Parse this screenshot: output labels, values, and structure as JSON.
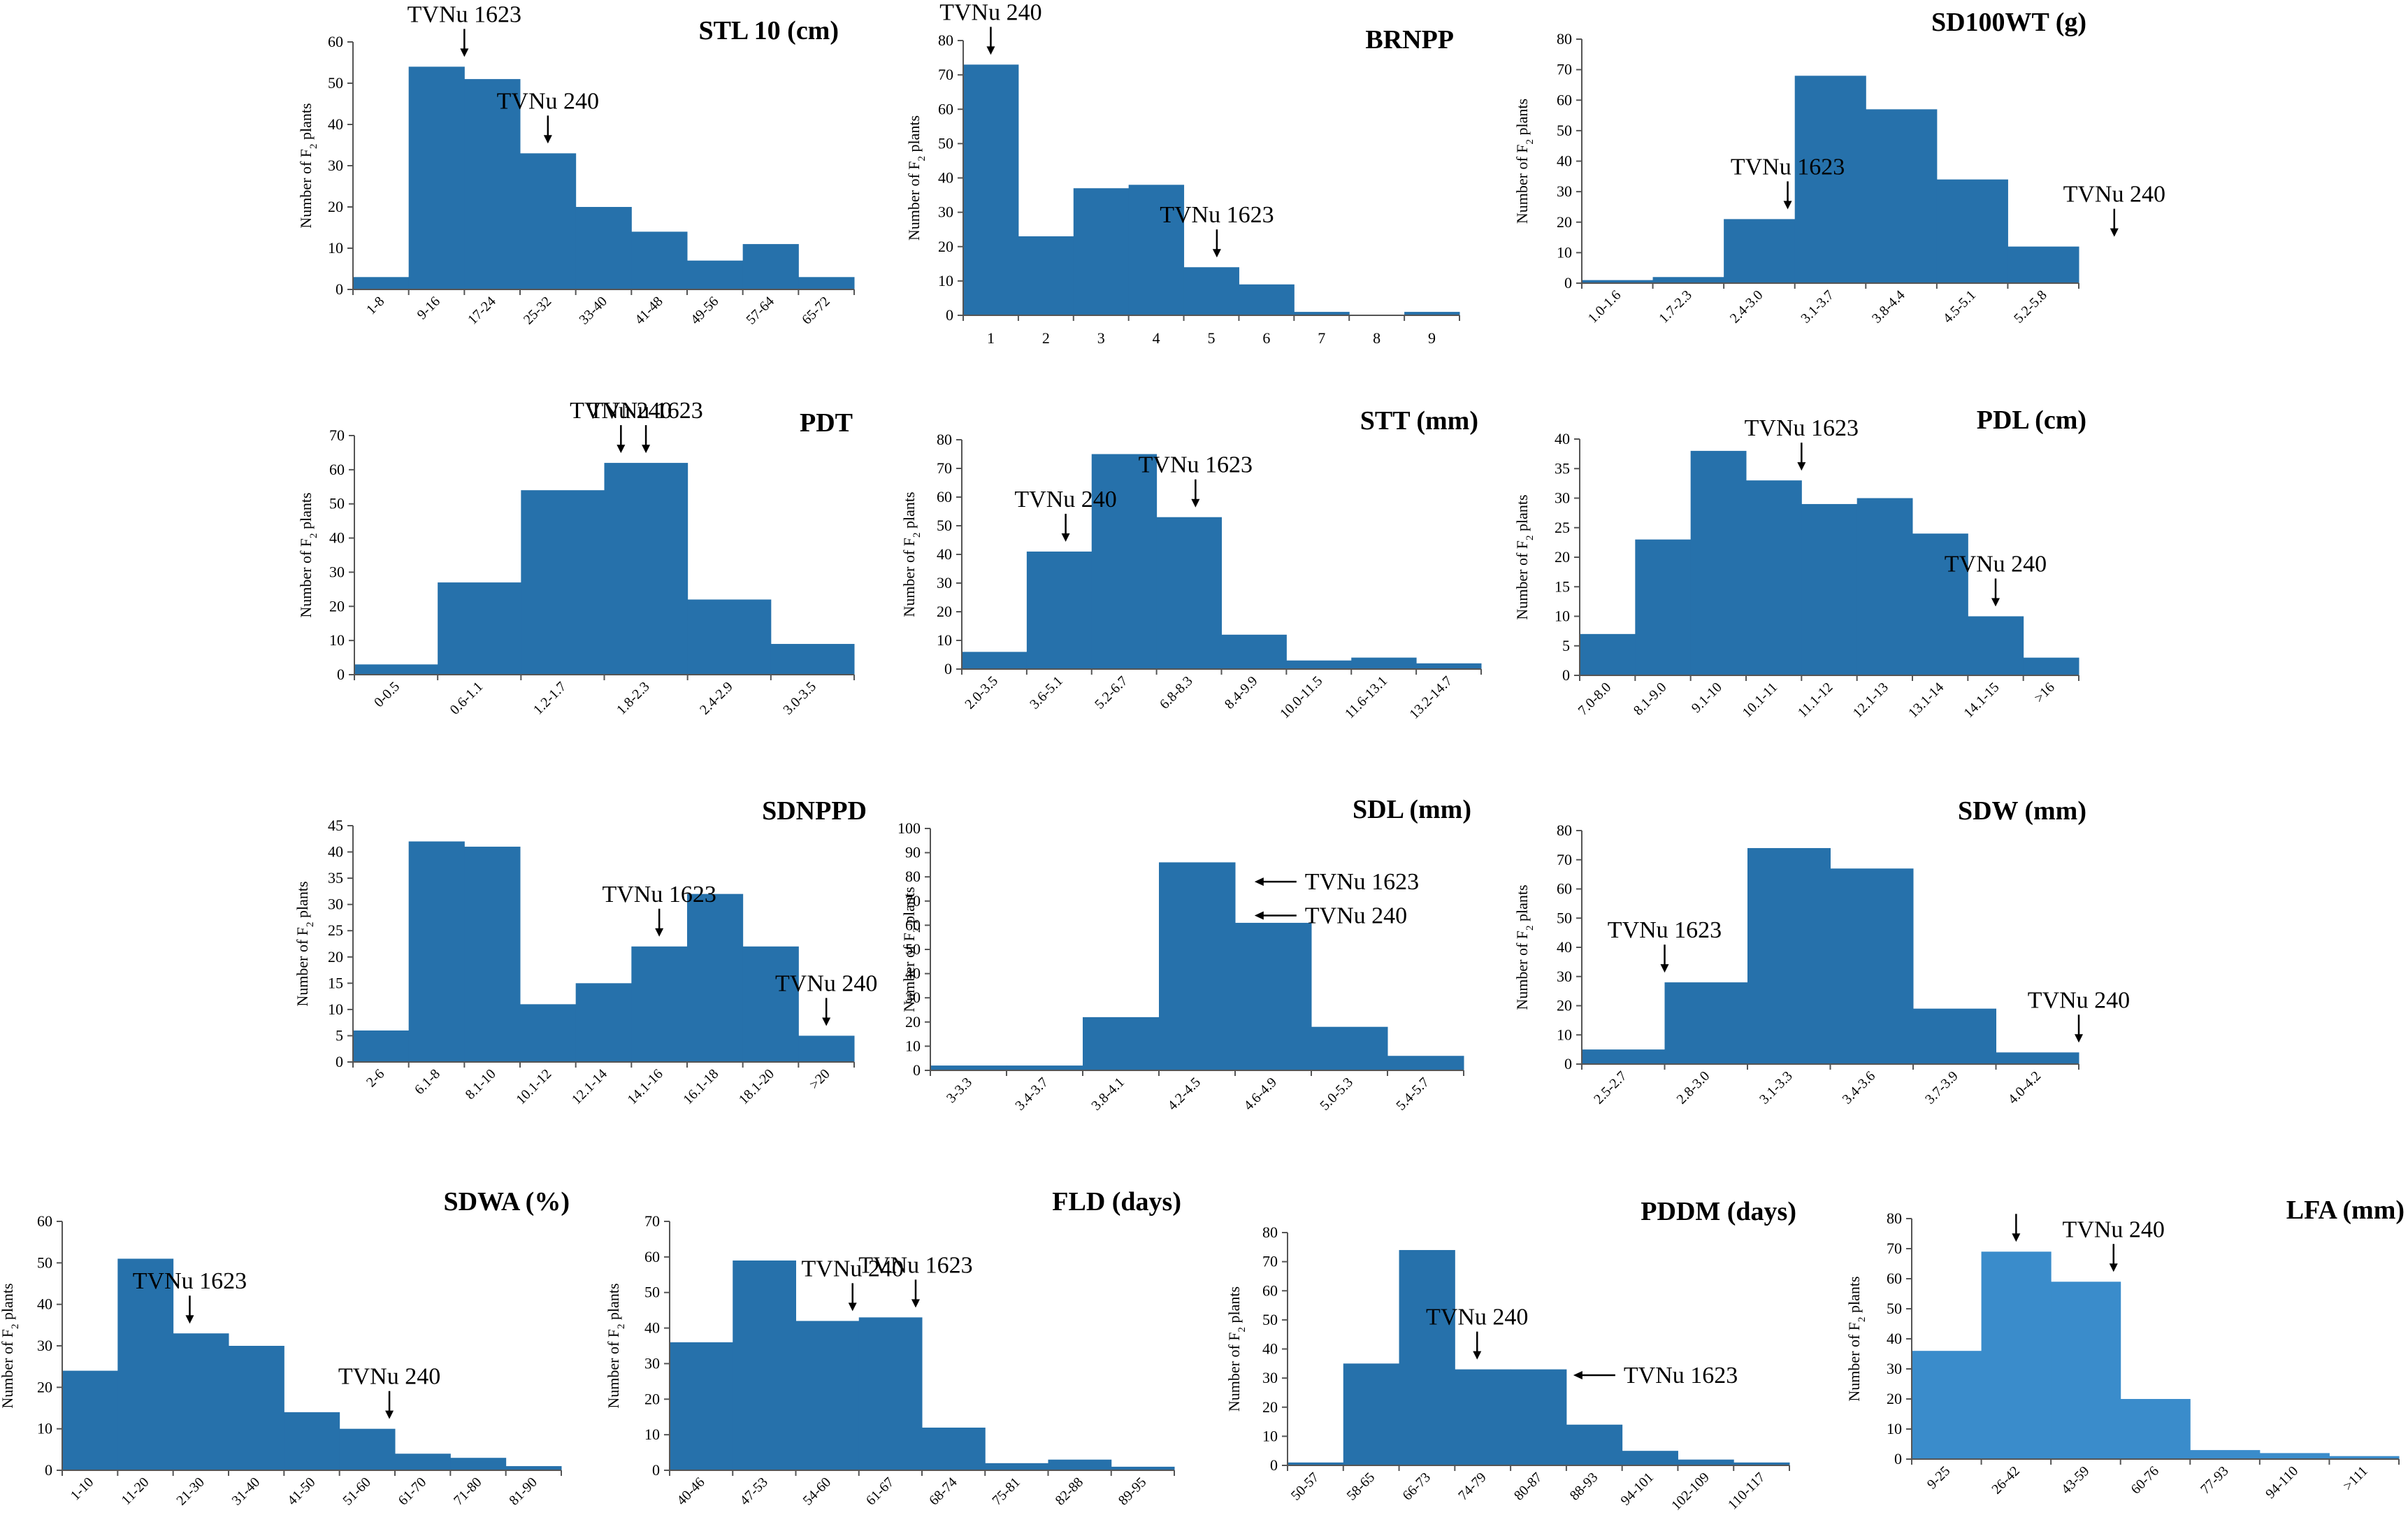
{
  "figure": {
    "ylabel_parts": {
      "prefix": "Number of F",
      "sub": "2",
      "suffix": " plants"
    }
  },
  "chart_data": [
    {
      "type": "bar",
      "title": "STL 10 (cm)",
      "categories": [
        "1-8",
        "9-16",
        "17-24",
        "25-32",
        "33-40",
        "41-48",
        "49-56",
        "57-64",
        "65-72"
      ],
      "values": [
        3,
        54,
        51,
        33,
        20,
        14,
        7,
        11,
        3
      ],
      "yticks": [
        0,
        10,
        20,
        30,
        40,
        50,
        60
      ],
      "ylim": [
        0,
        60
      ],
      "annotations": [
        {
          "label": "TVNu 1623",
          "bin": 2.0,
          "dir": "down"
        },
        {
          "label": "TVNu 240",
          "bin": 3.5,
          "dir": "down"
        }
      ]
    },
    {
      "type": "bar",
      "title": "BRNPP",
      "categories": [
        "1",
        "2",
        "3",
        "4",
        "5",
        "6",
        "7",
        "8",
        "9"
      ],
      "values": [
        73,
        23,
        37,
        38,
        14,
        9,
        1,
        0,
        1
      ],
      "yticks": [
        0,
        10,
        20,
        30,
        40,
        50,
        60,
        70,
        80
      ],
      "ylim": [
        0,
        80
      ],
      "annotations": [
        {
          "label": "TVNu 240",
          "bin": 0.5,
          "dir": "down"
        },
        {
          "label": "TVNu 1623",
          "bin": 4.6,
          "dir": "down"
        }
      ]
    },
    {
      "type": "bar",
      "title": "SD100WT (g)",
      "categories": [
        "1.0-1.6",
        "1.7-2.3",
        "2.4-3.0",
        "3.1-3.7",
        "3.8-4.4",
        "4.5-5.1",
        "5.2-5.8"
      ],
      "values": [
        1,
        2,
        21,
        68,
        57,
        34,
        12
      ],
      "yticks": [
        0,
        10,
        20,
        30,
        40,
        50,
        60,
        70,
        80
      ],
      "ylim": [
        0,
        80
      ],
      "annotations": [
        {
          "label": "TVNu 1623",
          "bin": 2.9,
          "dir": "down"
        },
        {
          "label": "TVNu 240",
          "bin": 7.5,
          "dir": "down"
        }
      ]
    },
    {
      "type": "bar",
      "title": "PDT",
      "categories": [
        "0-0.5",
        "0.6-1.1",
        "1.2-1.7",
        "1.8-2.3",
        "2.4-2.9",
        "3.0-3.5"
      ],
      "values": [
        3,
        27,
        54,
        62,
        22,
        9
      ],
      "yticks": [
        0,
        10,
        20,
        30,
        40,
        50,
        60,
        70
      ],
      "ylim": [
        0,
        70
      ],
      "annotations": [
        {
          "label": "TVNu 240",
          "bin": 3.2,
          "dir": "down"
        },
        {
          "label": "TVNu 1623",
          "bin": 3.5,
          "dir": "down"
        }
      ]
    },
    {
      "type": "bar",
      "title": "STT (mm)",
      "categories": [
        "2.0-3.5",
        "3.6-5.1",
        "5.2-6.7",
        "6.8-8.3",
        "8.4-9.9",
        "10.0-11.5",
        "11.6-13.1",
        "13.2-14.7"
      ],
      "values": [
        6,
        41,
        75,
        53,
        12,
        3,
        4,
        2
      ],
      "yticks": [
        0,
        10,
        20,
        30,
        40,
        50,
        60,
        70,
        80
      ],
      "ylim": [
        0,
        80
      ],
      "annotations": [
        {
          "label": "TVNu 240",
          "bin": 1.6,
          "dir": "down"
        },
        {
          "label": "TVNu 1623",
          "bin": 3.6,
          "dir": "down"
        }
      ]
    },
    {
      "type": "bar",
      "title": "PDL (cm)",
      "categories": [
        "7.0-8.0",
        "8.1-9.0",
        "9.1-10",
        "10.1-11",
        "11.1-12",
        "12.1-13",
        "13.1-14",
        "14.1-15",
        ">16"
      ],
      "values": [
        7,
        23,
        38,
        33,
        29,
        30,
        24,
        10,
        3
      ],
      "yticks": [
        0,
        5,
        10,
        15,
        20,
        25,
        30,
        35,
        40
      ],
      "ylim": [
        0,
        40
      ],
      "annotations": [
        {
          "label": "TVNu 1623",
          "bin": 4.0,
          "dir": "down"
        },
        {
          "label": "TVNu 240",
          "bin": 7.5,
          "dir": "down"
        }
      ]
    },
    {
      "type": "bar",
      "title": "SDNPPD",
      "categories": [
        "2-6",
        "6.1-8",
        "8.1-10",
        "10.1-12",
        "12.1-14",
        "14.1-16",
        "16.1-18",
        "18.1-20",
        ">20"
      ],
      "values": [
        6,
        42,
        41,
        11,
        15,
        22,
        32,
        22,
        5
      ],
      "yticks": [
        0,
        5,
        10,
        15,
        20,
        25,
        30,
        35,
        40,
        45
      ],
      "ylim": [
        0,
        45
      ],
      "annotations": [
        {
          "label": "TVNu 1623",
          "bin": 5.5,
          "dir": "down"
        },
        {
          "label": "TVNu 240",
          "bin": 8.5,
          "dir": "down"
        }
      ]
    },
    {
      "type": "bar",
      "title": "SDL (mm)",
      "categories": [
        "3-3.3",
        "3.4-3.7",
        "3.8-4.1",
        "4.2-4.5",
        "4.6-4.9",
        "5.0-5.3",
        "5.4-5.7"
      ],
      "values": [
        2,
        2,
        22,
        86,
        61,
        18,
        6
      ],
      "yticks": [
        0,
        10,
        20,
        30,
        40,
        50,
        60,
        70,
        80,
        90,
        100
      ],
      "ylim": [
        0,
        100
      ],
      "annotations": [
        {
          "label": "TVNu 1623",
          "bin": 4.2,
          "y": 78,
          "dir": "left"
        },
        {
          "label": "TVNu 240",
          "bin": 4.2,
          "y": 64,
          "dir": "left"
        }
      ]
    },
    {
      "type": "bar",
      "title": "SDW (mm)",
      "categories": [
        "2.5-2.7",
        "2.8-3.0",
        "3.1-3.3",
        "3.4-3.6",
        "3.7-3.9",
        "4.0-4.2"
      ],
      "values": [
        5,
        28,
        74,
        67,
        19,
        4
      ],
      "yticks": [
        0,
        10,
        20,
        30,
        40,
        50,
        60,
        70,
        80
      ],
      "ylim": [
        0,
        80
      ],
      "annotations": [
        {
          "label": "TVNu 1623",
          "bin": 1.0,
          "dir": "down"
        },
        {
          "label": "TVNu 240",
          "bin": 6.0,
          "dir": "down"
        }
      ]
    },
    {
      "type": "bar",
      "title": "SDWA (%)",
      "categories": [
        "1-10",
        "11-20",
        "21-30",
        "31-40",
        "41-50",
        "51-60",
        "61-70",
        "71-80",
        "81-90"
      ],
      "values": [
        24,
        51,
        33,
        30,
        14,
        10,
        4,
        3,
        1
      ],
      "yticks": [
        0,
        10,
        20,
        30,
        40,
        50,
        60
      ],
      "ylim": [
        0,
        60
      ],
      "annotations": [
        {
          "label": "TVNu 1623",
          "bin": 2.3,
          "dir": "down"
        },
        {
          "label": "TVNu 240",
          "bin": 5.9,
          "dir": "down"
        }
      ]
    },
    {
      "type": "bar",
      "title": "FLD (days)",
      "categories": [
        "40-46",
        "47-53",
        "54-60",
        "61-67",
        "68-74",
        "75-81",
        "82-88",
        "89-95"
      ],
      "values": [
        36,
        59,
        42,
        43,
        12,
        2,
        3,
        1
      ],
      "yticks": [
        0,
        10,
        20,
        30,
        40,
        50,
        60,
        70
      ],
      "ylim": [
        0,
        70
      ],
      "annotations": [
        {
          "label": "TVNu 240",
          "bin": 2.9,
          "dir": "down"
        },
        {
          "label": "TVNu 1623",
          "bin": 3.9,
          "dir": "down"
        }
      ]
    },
    {
      "type": "bar",
      "title": "PDDM (days)",
      "categories": [
        "50-57",
        "58-65",
        "66-73",
        "74-79",
        "80-87",
        "88-93",
        "94-101",
        "102-109",
        "110-117"
      ],
      "values": [
        1,
        35,
        74,
        33,
        33,
        14,
        5,
        2,
        1
      ],
      "yticks": [
        0,
        10,
        20,
        30,
        40,
        50,
        60,
        70,
        80
      ],
      "ylim": [
        0,
        80
      ],
      "annotations": [
        {
          "label": "TVNu 240",
          "bin": 3.4,
          "dir": "down"
        },
        {
          "label": "TVNu 1623",
          "bin": 5.05,
          "y": 31,
          "dir": "left"
        }
      ]
    },
    {
      "type": "bar",
      "title": "LFA (mm)",
      "categories": [
        "9-25",
        "26-42",
        "43-59",
        "60-76",
        "77-93",
        "94-110",
        ">111"
      ],
      "values": [
        36,
        69,
        59,
        20,
        3,
        2,
        1
      ],
      "yticks": [
        0,
        10,
        20,
        30,
        40,
        50,
        60,
        70,
        80
      ],
      "ylim": [
        0,
        80
      ],
      "annotations": [
        {
          "label": "",
          "bin": 1.5,
          "dir": "down"
        },
        {
          "label": "TVNu 240",
          "bin": 2.9,
          "dir": "down"
        }
      ]
    }
  ]
}
